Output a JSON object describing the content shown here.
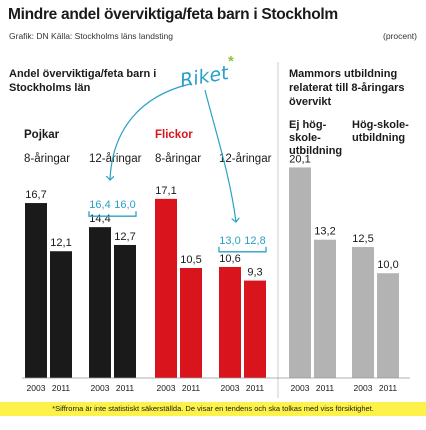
{
  "title": "Mindre andel överviktiga/feta barn i Stockholm",
  "credits": "Grafik: DN   Källa: Stockholms läns landsting",
  "unit": "(procent)",
  "left_title": "Andel överviktiga/feta barn i Stockholms län",
  "right_title": "Mammors utbildning relaterat till 8-åringars övervikt",
  "annotation": {
    "text": "Riket",
    "mark": "*"
  },
  "groups": {
    "boys": "Pojkar",
    "girls": "Flickor",
    "age8": "8-åringar",
    "age12": "12-åringar"
  },
  "right_groups": {
    "low": "Ej hög-skole-utbildning",
    "high": "Hög-skole-utbildning"
  },
  "footnote": "*Siffrorna är inte statistiskt säkerställda. De visar en tendens och ska tolkas med viss försiktighet.",
  "colors": {
    "boys": "#1a1a1a",
    "girls": "#d9141c",
    "education": "#b3b3b3",
    "national": "#2aa0c8",
    "footnote_bg": "#fdf24a"
  },
  "chart_data": {
    "type": "bar",
    "categories": [
      "2003",
      "2011"
    ],
    "ylim": [
      0,
      21
    ],
    "series": [
      {
        "name": "Pojkar 8-åringar",
        "values": [
          16.7,
          12.1
        ],
        "labels": [
          "16,7",
          "12,1"
        ],
        "national": null,
        "national_labels": null
      },
      {
        "name": "Pojkar 12-åringar",
        "values": [
          14.4,
          12.7
        ],
        "labels": [
          "14,4",
          "12,7"
        ],
        "national": [
          16.4,
          16.0
        ],
        "national_labels": [
          "16,4",
          "16,0"
        ]
      },
      {
        "name": "Flickor 8-åringar",
        "values": [
          17.1,
          10.5
        ],
        "labels": [
          "17,1",
          "10,5"
        ],
        "national": null,
        "national_labels": null
      },
      {
        "name": "Flickor 12-åringar",
        "values": [
          10.6,
          9.3
        ],
        "labels": [
          "10,6",
          "9,3"
        ],
        "national": [
          13.0,
          12.8
        ],
        "national_labels": [
          "13,0",
          "12,8"
        ]
      },
      {
        "name": "Ej högskoleutbildning",
        "values": [
          20.1,
          13.2
        ],
        "labels": [
          "20,1",
          "13,2"
        ],
        "national": null,
        "national_labels": null
      },
      {
        "name": "Högskoleutbildning",
        "values": [
          12.5,
          10.0
        ],
        "labels": [
          "12,5",
          "10,0"
        ],
        "national": null,
        "national_labels": null
      }
    ]
  }
}
